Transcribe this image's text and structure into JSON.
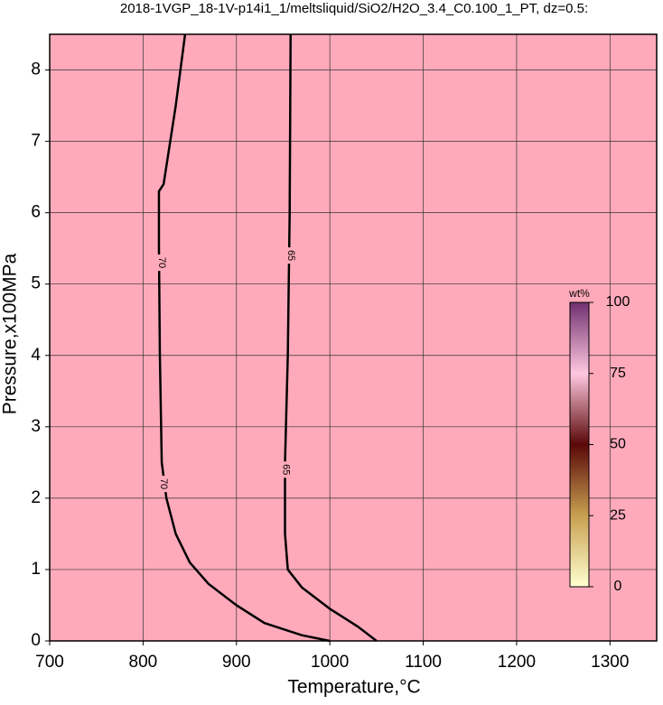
{
  "chart_data": {
    "type": "contour",
    "title": "2018-1VGP_18-1V-p14i1_1/meltsliquid/SiO2/H2O_3.4_C0.100_1_PT, dz=0.5:",
    "xlabel": "Temperature,°C",
    "ylabel": "Pressure,x100MPa",
    "xlim": [
      700,
      1350
    ],
    "ylim": [
      0,
      8.5
    ],
    "xticks": [
      700,
      800,
      900,
      1000,
      1100,
      1200,
      1300
    ],
    "yticks": [
      0,
      1,
      2,
      3,
      4,
      5,
      6,
      7,
      8
    ],
    "grid": true,
    "background": "#ffaabb",
    "contours": [
      {
        "level": 70,
        "color": "#000000",
        "x": [
          845,
          835,
          822,
          817,
          817,
          818,
          820,
          825,
          835,
          850,
          870,
          900,
          930,
          970,
          1000
        ],
        "y": [
          8.5,
          7.5,
          6.4,
          6.3,
          5.5,
          4,
          2.5,
          2,
          1.5,
          1.1,
          0.8,
          0.5,
          0.25,
          0.08,
          0
        ],
        "label_x": [
          820,
          822
        ],
        "label_y": [
          5.3,
          2.2
        ]
      },
      {
        "level": 65,
        "color": "#000000",
        "x": [
          958,
          957,
          955,
          952,
          952,
          955,
          970,
          1000,
          1030,
          1050
        ],
        "y": [
          8.5,
          6,
          4,
          2.5,
          1.5,
          1.0,
          0.75,
          0.45,
          0.2,
          0
        ],
        "label_x": [
          958,
          953
        ],
        "label_y": [
          5.4,
          2.4
        ]
      }
    ],
    "colorbar": {
      "label": "wt%",
      "lim": [
        0,
        100
      ],
      "ticks": [
        0,
        25,
        50,
        75,
        100
      ],
      "colors": [
        "#ffffd0",
        "#c8a050",
        "#5a0808",
        "#ffc8e0",
        "#703070"
      ]
    }
  }
}
